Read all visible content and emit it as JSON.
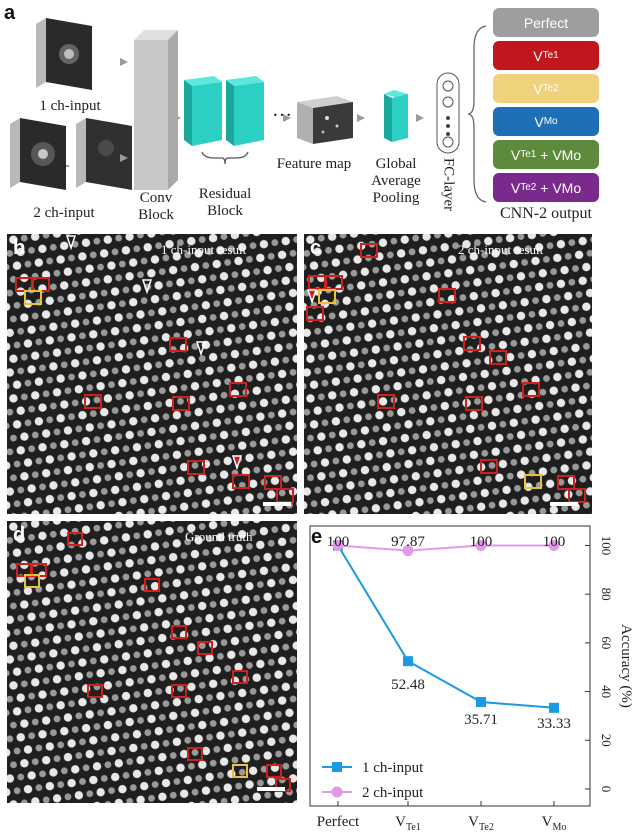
{
  "panel_a": {
    "letter": "a",
    "input1_label": "1 ch-input",
    "input2_label": "2 ch-input",
    "plus": "+",
    "conv_label": "Conv\nBlock",
    "residual_label": "Residual\nBlock",
    "dots": "…",
    "feature_label": "Feature map",
    "pool_label": "Global\nAverage\nPooling",
    "fc_label": "FC-layer",
    "cnn_output": "CNN-2 output",
    "outputs": [
      {
        "base": "Perfect",
        "sub": "",
        "tail": "",
        "sub2": "",
        "tail2": "",
        "color": "#9e9e9e"
      },
      {
        "base": "V",
        "sub": "Te1",
        "tail": "",
        "sub2": "",
        "tail2": "",
        "color": "#c0161d"
      },
      {
        "base": "V",
        "sub": "Te2",
        "tail": "",
        "sub2": "",
        "tail2": "",
        "color": "#f0d27c"
      },
      {
        "base": "V",
        "sub": "Mo",
        "tail": "",
        "sub2": "",
        "tail2": "",
        "color": "#1e6fb6"
      },
      {
        "base": "V",
        "sub": "Te1",
        "tail": " + VMo",
        "sub2": "",
        "tail2": "",
        "color": "#5d8a3b"
      },
      {
        "base": "V",
        "sub": "Te2",
        "tail": " + VMo",
        "sub2": "",
        "tail2": "",
        "color": "#7a2a8c"
      }
    ]
  },
  "panel_b": {
    "letter": "b",
    "title": "1 ch-input result"
  },
  "panel_c": {
    "letter": "c",
    "title": "2 ch-input result"
  },
  "panel_d": {
    "letter": "d",
    "title": "Ground truth"
  },
  "panel_e": {
    "letter": "e"
  },
  "colors": {
    "red_box": "#d01f1f",
    "yellow_box": "#e8c23a",
    "series1": "#1a9be0",
    "series2": "#e29ae6"
  },
  "chart_data": {
    "type": "line",
    "categories": [
      "Perfect",
      "V_Te1",
      "V_Te2",
      "V_Mo"
    ],
    "categories_display": [
      {
        "base": "Perfect",
        "sub": ""
      },
      {
        "base": "V",
        "sub": "Te1"
      },
      {
        "base": "V",
        "sub": "Te2"
      },
      {
        "base": "V",
        "sub": "Mo"
      }
    ],
    "series": [
      {
        "name": "1 ch-input",
        "values": [
          100,
          52.48,
          35.71,
          33.33
        ],
        "labels": [
          "",
          "52.48",
          "35.71",
          "33.33"
        ],
        "marker": "square"
      },
      {
        "name": "2 ch-input",
        "values": [
          100,
          97.87,
          100,
          100
        ],
        "labels": [
          "100",
          "97.87",
          "100",
          "100"
        ],
        "marker": "circle"
      }
    ],
    "ylabel": "Accuracy (%)",
    "ylim": [
      -7,
      108
    ],
    "yticks": [
      0,
      20,
      40,
      60,
      80,
      100
    ],
    "legend": "bottom-left",
    "grid": false
  }
}
